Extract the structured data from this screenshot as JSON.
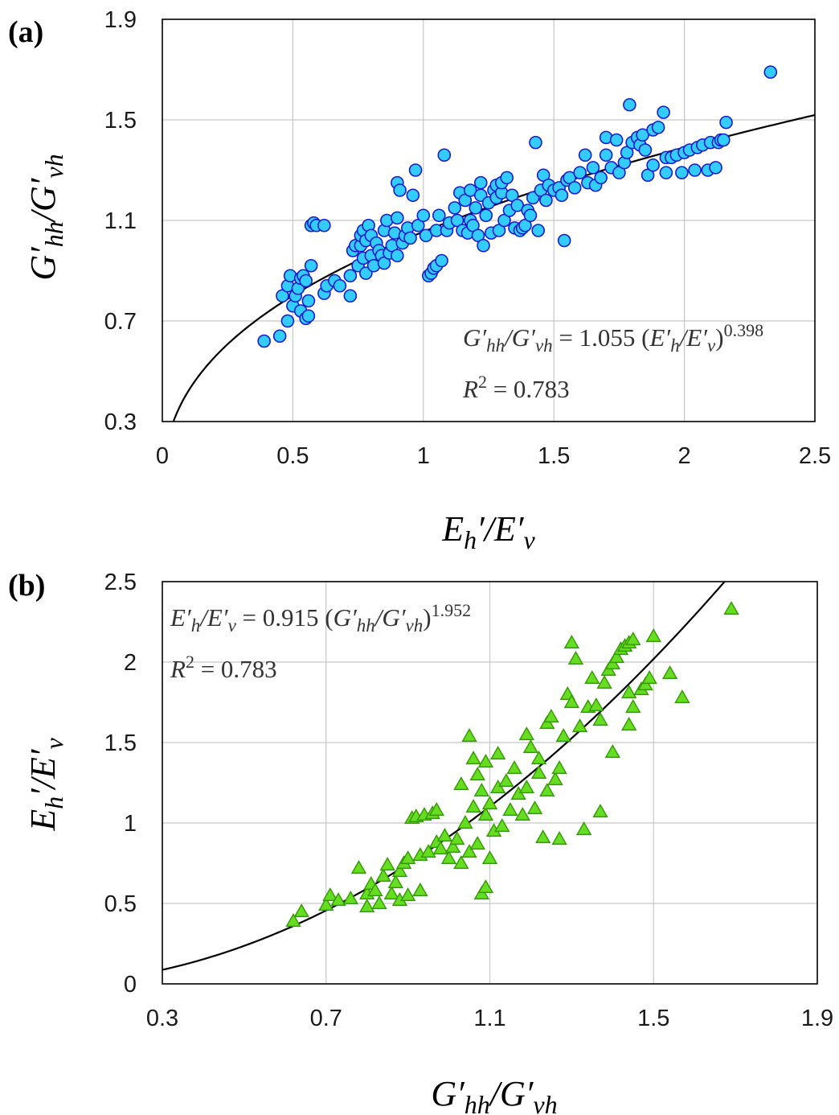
{
  "chart_data": [
    {
      "panel_label": "(a)",
      "type": "scatter",
      "xlabel": "E′h/E′v",
      "ylabel": "G′hh/G′vh",
      "xlim": [
        0,
        2.5
      ],
      "ylim": [
        0.3,
        1.9
      ],
      "x_ticks": [
        "0",
        "0.5",
        "1",
        "1.5",
        "2",
        "2.5"
      ],
      "y_ticks": [
        "0.3",
        "0.7",
        "1.1",
        "1.5",
        "1.9"
      ],
      "grid": true,
      "marker": "circle",
      "marker_color": "#33ccff",
      "marker_edge": "#1a1acc",
      "equation": "G′hh/G′vh = 1.055 (E′h/E′v)^0.398",
      "r2": "R² = 0.783",
      "fit": {
        "coef": 1.055,
        "exp": 0.398
      },
      "points": [
        [
          0.39,
          0.62
        ],
        [
          0.45,
          0.64
        ],
        [
          0.46,
          0.8
        ],
        [
          0.48,
          0.7
        ],
        [
          0.48,
          0.84
        ],
        [
          0.49,
          0.88
        ],
        [
          0.5,
          0.76
        ],
        [
          0.51,
          0.8
        ],
        [
          0.52,
          0.83
        ],
        [
          0.53,
          0.74
        ],
        [
          0.53,
          0.87
        ],
        [
          0.54,
          0.88
        ],
        [
          0.55,
          0.71
        ],
        [
          0.55,
          0.86
        ],
        [
          0.56,
          0.72
        ],
        [
          0.56,
          0.78
        ],
        [
          0.57,
          1.08
        ],
        [
          0.58,
          1.09
        ],
        [
          0.59,
          1.08
        ],
        [
          0.57,
          0.92
        ],
        [
          0.62,
          1.08
        ],
        [
          0.62,
          0.81
        ],
        [
          0.63,
          0.84
        ],
        [
          0.66,
          0.86
        ],
        [
          0.68,
          0.84
        ],
        [
          0.72,
          0.8
        ],
        [
          0.72,
          0.88
        ],
        [
          0.73,
          0.98
        ],
        [
          0.74,
          1.0
        ],
        [
          0.75,
          0.92
        ],
        [
          0.76,
          1.0
        ],
        [
          0.76,
          1.04
        ],
        [
          0.77,
          0.95
        ],
        [
          0.77,
          1.06
        ],
        [
          0.78,
          0.89
        ],
        [
          0.78,
          1.02
        ],
        [
          0.79,
          1.08
        ],
        [
          0.8,
          0.96
        ],
        [
          0.8,
          1.04
        ],
        [
          0.81,
          0.92
        ],
        [
          0.82,
          1.01
        ],
        [
          0.83,
          0.98
        ],
        [
          0.84,
          0.96
        ],
        [
          0.85,
          0.93
        ],
        [
          0.85,
          1.06
        ],
        [
          0.86,
          1.1
        ],
        [
          0.87,
          0.97
        ],
        [
          0.88,
          1.0
        ],
        [
          0.89,
          1.05
        ],
        [
          0.9,
          1.11
        ],
        [
          0.9,
          0.96
        ],
        [
          0.9,
          1.25
        ],
        [
          0.91,
          1.22
        ],
        [
          0.92,
          1.01
        ],
        [
          0.93,
          1.04
        ],
        [
          0.94,
          1.07
        ],
        [
          0.95,
          1.03
        ],
        [
          0.96,
          1.2
        ],
        [
          0.97,
          1.3
        ],
        [
          0.98,
          1.08
        ],
        [
          1.0,
          1.12
        ],
        [
          1.01,
          1.04
        ],
        [
          1.02,
          0.88
        ],
        [
          1.03,
          0.89
        ],
        [
          1.04,
          0.91
        ],
        [
          1.05,
          1.06
        ],
        [
          1.05,
          0.92
        ],
        [
          1.06,
          1.12
        ],
        [
          1.07,
          0.94
        ],
        [
          1.08,
          1.36
        ],
        [
          1.09,
          1.06
        ],
        [
          1.1,
          1.09
        ],
        [
          1.12,
          1.15
        ],
        [
          1.13,
          1.1
        ],
        [
          1.14,
          1.21
        ],
        [
          1.15,
          1.06
        ],
        [
          1.16,
          1.18
        ],
        [
          1.17,
          1.05
        ],
        [
          1.18,
          1.1
        ],
        [
          1.18,
          1.22
        ],
        [
          1.19,
          1.08
        ],
        [
          1.2,
          1.15
        ],
        [
          1.21,
          1.04
        ],
        [
          1.22,
          1.2
        ],
        [
          1.22,
          1.25
        ],
        [
          1.23,
          1.0
        ],
        [
          1.24,
          1.12
        ],
        [
          1.25,
          1.17
        ],
        [
          1.26,
          1.05
        ],
        [
          1.27,
          1.22
        ],
        [
          1.28,
          1.19
        ],
        [
          1.28,
          1.24
        ],
        [
          1.29,
          1.06
        ],
        [
          1.3,
          1.21
        ],
        [
          1.3,
          1.25
        ],
        [
          1.31,
          1.1
        ],
        [
          1.32,
          1.27
        ],
        [
          1.33,
          1.14
        ],
        [
          1.34,
          1.2
        ],
        [
          1.35,
          1.07
        ],
        [
          1.36,
          1.16
        ],
        [
          1.37,
          1.06
        ],
        [
          1.38,
          1.07
        ],
        [
          1.39,
          1.08
        ],
        [
          1.4,
          1.14
        ],
        [
          1.41,
          1.12
        ],
        [
          1.42,
          1.19
        ],
        [
          1.43,
          1.41
        ],
        [
          1.44,
          1.06
        ],
        [
          1.45,
          1.22
        ],
        [
          1.46,
          1.28
        ],
        [
          1.47,
          1.18
        ],
        [
          1.48,
          1.24
        ],
        [
          1.5,
          1.22
        ],
        [
          1.52,
          1.23
        ],
        [
          1.53,
          1.2
        ],
        [
          1.54,
          1.02
        ],
        [
          1.55,
          1.26
        ],
        [
          1.56,
          1.27
        ],
        [
          1.58,
          1.23
        ],
        [
          1.6,
          1.29
        ],
        [
          1.62,
          1.36
        ],
        [
          1.63,
          1.25
        ],
        [
          1.65,
          1.31
        ],
        [
          1.66,
          1.24
        ],
        [
          1.68,
          1.27
        ],
        [
          1.7,
          1.36
        ],
        [
          1.7,
          1.43
        ],
        [
          1.72,
          1.31
        ],
        [
          1.74,
          1.42
        ],
        [
          1.75,
          1.29
        ],
        [
          1.77,
          1.33
        ],
        [
          1.78,
          1.37
        ],
        [
          1.79,
          1.56
        ],
        [
          1.8,
          1.41
        ],
        [
          1.82,
          1.43
        ],
        [
          1.83,
          1.4
        ],
        [
          1.84,
          1.44
        ],
        [
          1.85,
          1.38
        ],
        [
          1.86,
          1.28
        ],
        [
          1.88,
          1.46
        ],
        [
          1.88,
          1.32
        ],
        [
          1.9,
          1.47
        ],
        [
          1.92,
          1.53
        ],
        [
          1.93,
          1.35
        ],
        [
          1.93,
          1.29
        ],
        [
          1.95,
          1.35
        ],
        [
          1.97,
          1.36
        ],
        [
          1.99,
          1.29
        ],
        [
          2.0,
          1.37
        ],
        [
          2.02,
          1.38
        ],
        [
          2.04,
          1.3
        ],
        [
          2.05,
          1.39
        ],
        [
          2.07,
          1.4
        ],
        [
          2.09,
          1.3
        ],
        [
          2.1,
          1.41
        ],
        [
          2.12,
          1.31
        ],
        [
          2.13,
          1.41
        ],
        [
          2.14,
          1.42
        ],
        [
          2.15,
          1.42
        ],
        [
          2.16,
          1.49
        ],
        [
          2.33,
          1.69
        ]
      ]
    },
    {
      "panel_label": "(b)",
      "type": "scatter",
      "xlabel": "G′hh/G′vh",
      "ylabel": "E′h/E′v",
      "xlim": [
        0.3,
        1.9
      ],
      "ylim": [
        0,
        2.5
      ],
      "x_ticks": [
        "0.3",
        "0.7",
        "1.1",
        "1.5",
        "1.9"
      ],
      "y_ticks": [
        "0",
        "0.5",
        "1",
        "1.5",
        "2",
        "2.5"
      ],
      "grid": true,
      "marker": "triangle",
      "marker_color": "#66dd22",
      "marker_edge": "#339900",
      "equation": "E′h/E′v = 0.915 (G′hh/G′vh)^1.952",
      "r2": "R² = 0.783",
      "fit": {
        "coef": 0.915,
        "exp": 1.952
      },
      "points": [
        [
          0.62,
          0.39
        ],
        [
          0.64,
          0.45
        ],
        [
          0.7,
          0.49
        ],
        [
          0.71,
          0.55
        ],
        [
          0.73,
          0.52
        ],
        [
          0.76,
          0.53
        ],
        [
          0.78,
          0.72
        ],
        [
          0.8,
          0.56
        ],
        [
          0.8,
          0.48
        ],
        [
          0.81,
          0.62
        ],
        [
          0.82,
          0.58
        ],
        [
          0.83,
          0.5
        ],
        [
          0.84,
          0.67
        ],
        [
          0.85,
          0.74
        ],
        [
          0.86,
          0.56
        ],
        [
          0.87,
          0.63
        ],
        [
          0.88,
          0.7
        ],
        [
          0.88,
          0.52
        ],
        [
          0.89,
          0.75
        ],
        [
          0.9,
          0.78
        ],
        [
          0.9,
          0.55
        ],
        [
          0.91,
          1.03
        ],
        [
          0.92,
          1.04
        ],
        [
          0.93,
          0.58
        ],
        [
          0.93,
          0.8
        ],
        [
          0.94,
          1.05
        ],
        [
          0.95,
          0.82
        ],
        [
          0.96,
          1.06
        ],
        [
          0.97,
          1.08
        ],
        [
          0.97,
          0.88
        ],
        [
          0.98,
          0.84
        ],
        [
          0.99,
          0.92
        ],
        [
          1.0,
          0.78
        ],
        [
          1.01,
          0.85
        ],
        [
          1.02,
          0.9
        ],
        [
          1.03,
          1.24
        ],
        [
          1.03,
          0.75
        ],
        [
          1.04,
          1.0
        ],
        [
          1.05,
          1.54
        ],
        [
          1.05,
          0.82
        ],
        [
          1.06,
          1.4
        ],
        [
          1.06,
          1.1
        ],
        [
          1.07,
          1.3
        ],
        [
          1.07,
          0.87
        ],
        [
          1.08,
          1.2
        ],
        [
          1.08,
          0.56
        ],
        [
          1.09,
          1.38
        ],
        [
          1.09,
          0.6
        ],
        [
          1.09,
          1.05
        ],
        [
          1.1,
          0.78
        ],
        [
          1.1,
          1.12
        ],
        [
          1.11,
          0.95
        ],
        [
          1.12,
          1.43
        ],
        [
          1.12,
          1.22
        ],
        [
          1.13,
          0.98
        ],
        [
          1.14,
          1.26
        ],
        [
          1.15,
          1.08
        ],
        [
          1.16,
          1.34
        ],
        [
          1.17,
          1.18
        ],
        [
          1.18,
          1.05
        ],
        [
          1.19,
          1.55
        ],
        [
          1.19,
          1.22
        ],
        [
          1.2,
          1.47
        ],
        [
          1.21,
          1.09
        ],
        [
          1.22,
          1.31
        ],
        [
          1.22,
          1.4
        ],
        [
          1.23,
          0.91
        ],
        [
          1.24,
          1.62
        ],
        [
          1.24,
          1.2
        ],
        [
          1.25,
          1.66
        ],
        [
          1.26,
          1.27
        ],
        [
          1.27,
          0.9
        ],
        [
          1.27,
          1.34
        ],
        [
          1.28,
          1.54
        ],
        [
          1.29,
          1.8
        ],
        [
          1.3,
          2.12
        ],
        [
          1.3,
          1.75
        ],
        [
          1.31,
          2.02
        ],
        [
          1.32,
          1.6
        ],
        [
          1.33,
          0.96
        ],
        [
          1.34,
          1.72
        ],
        [
          1.35,
          1.9
        ],
        [
          1.36,
          1.73
        ],
        [
          1.37,
          1.64
        ],
        [
          1.38,
          1.87
        ],
        [
          1.39,
          1.95
        ],
        [
          1.4,
          1.99
        ],
        [
          1.41,
          2.03
        ],
        [
          1.42,
          2.08
        ],
        [
          1.43,
          2.1
        ],
        [
          1.44,
          2.12
        ],
        [
          1.45,
          2.14
        ],
        [
          1.37,
          1.07
        ],
        [
          1.4,
          1.44
        ],
        [
          1.44,
          1.61
        ],
        [
          1.44,
          1.81
        ],
        [
          1.45,
          1.72
        ],
        [
          1.47,
          1.83
        ],
        [
          1.48,
          1.86
        ],
        [
          1.49,
          1.9
        ],
        [
          1.5,
          2.16
        ],
        [
          1.54,
          1.93
        ],
        [
          1.57,
          1.78
        ],
        [
          1.69,
          2.33
        ]
      ]
    }
  ]
}
